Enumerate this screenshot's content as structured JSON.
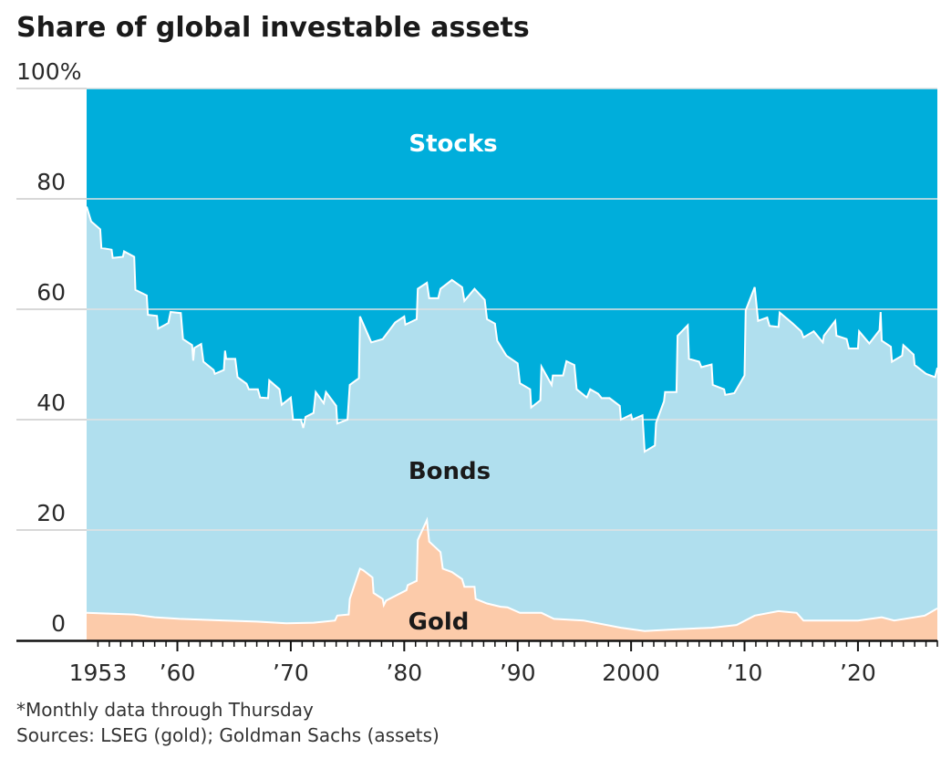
{
  "chart_data": {
    "type": "area",
    "stacked": true,
    "title": "Share of global investable assets",
    "ylim": [
      0,
      100
    ],
    "xlim": [
      1952,
      2027
    ],
    "y_ticks": [
      {
        "value": 100,
        "label": "100%"
      },
      {
        "value": 80,
        "label": "80"
      },
      {
        "value": 60,
        "label": "60"
      },
      {
        "value": 40,
        "label": "40"
      },
      {
        "value": 20,
        "label": "20"
      },
      {
        "value": 0,
        "label": "0"
      }
    ],
    "x_ticks": [
      {
        "value": 1953,
        "label": "1953"
      },
      {
        "value": 1960,
        "label": "’60"
      },
      {
        "value": 1970,
        "label": "’70"
      },
      {
        "value": 1980,
        "label": "’80"
      },
      {
        "value": 1990,
        "label": "’90"
      },
      {
        "value": 2000,
        "label": "2000"
      },
      {
        "value": 2010,
        "label": "’10"
      },
      {
        "value": 2020,
        "label": "’20"
      }
    ],
    "grid": true,
    "colors": {
      "Stocks": "#00aedb",
      "Bonds": "#b0dfee",
      "Gold": "#fccbaa",
      "stocks_label": "#ffffff",
      "other_label": "#1a1a1a"
    },
    "series": [
      {
        "name": "Stocks",
        "points": [
          [
            1952,
            21.4
          ],
          [
            1952.4,
            24.1
          ],
          [
            1953.2,
            25.5
          ],
          [
            1953.3,
            28.9
          ],
          [
            1954.2,
            29.2
          ],
          [
            1954.3,
            30.7
          ],
          [
            1955.2,
            30.5
          ],
          [
            1955.3,
            29.5
          ],
          [
            1956.2,
            30.5
          ],
          [
            1956.3,
            36.5
          ],
          [
            1957.3,
            37.5
          ],
          [
            1957.4,
            41
          ],
          [
            1958.2,
            41.2
          ],
          [
            1958.3,
            43.5
          ],
          [
            1959.2,
            42.5
          ],
          [
            1959.4,
            40.5
          ],
          [
            1960.3,
            40.7
          ],
          [
            1960.5,
            45.4
          ],
          [
            1961.3,
            46.5
          ],
          [
            1961.4,
            49.3
          ],
          [
            1961.5,
            47
          ],
          [
            1962.1,
            46.3
          ],
          [
            1962.3,
            49.5
          ],
          [
            1963.2,
            51
          ],
          [
            1963.3,
            51.7
          ],
          [
            1964.1,
            51
          ],
          [
            1964.2,
            47.5
          ],
          [
            1964.3,
            49
          ],
          [
            1965.1,
            49
          ],
          [
            1965.3,
            52.3
          ],
          [
            1966.1,
            53.5
          ],
          [
            1966.3,
            54.5
          ],
          [
            1967.1,
            54.5
          ],
          [
            1967.3,
            56
          ],
          [
            1968.0,
            56.1
          ],
          [
            1968.1,
            52.9
          ],
          [
            1969.0,
            54.5
          ],
          [
            1969.2,
            57.3
          ],
          [
            1970.0,
            56
          ],
          [
            1970.2,
            60
          ],
          [
            1970.9,
            60
          ],
          [
            1971.1,
            61.5
          ],
          [
            1971.3,
            59.5
          ],
          [
            1972.0,
            58.8
          ],
          [
            1972.2,
            55
          ],
          [
            1972.9,
            57
          ],
          [
            1973.1,
            55
          ],
          [
            1974.0,
            57.5
          ],
          [
            1974.1,
            60.7
          ],
          [
            1975.0,
            60
          ],
          [
            1975.2,
            53.7
          ],
          [
            1976.0,
            52.5
          ],
          [
            1976.1,
            41.3
          ],
          [
            1977.1,
            46
          ],
          [
            1978.1,
            45.4
          ],
          [
            1979.2,
            42.4
          ],
          [
            1980.0,
            41.3
          ],
          [
            1980.1,
            42.8
          ],
          [
            1981.1,
            41.8
          ],
          [
            1981.2,
            36.3
          ],
          [
            1982.0,
            35.2
          ],
          [
            1982.2,
            38
          ],
          [
            1983.0,
            38
          ],
          [
            1983.2,
            36.3
          ],
          [
            1984.2,
            34.7
          ],
          [
            1985.1,
            36
          ],
          [
            1985.3,
            38.5
          ],
          [
            1986.2,
            36.3
          ],
          [
            1987.1,
            38.3
          ],
          [
            1987.3,
            41.8
          ],
          [
            1988.0,
            42.6
          ],
          [
            1988.2,
            45.7
          ],
          [
            1989.0,
            48.4
          ],
          [
            1990.0,
            49.8
          ],
          [
            1990.2,
            53.4
          ],
          [
            1991.1,
            54.5
          ],
          [
            1991.2,
            57.8
          ],
          [
            1992.0,
            56.5
          ],
          [
            1992.1,
            50.4
          ],
          [
            1993.0,
            53.7
          ],
          [
            1993.1,
            52
          ],
          [
            1994.0,
            52
          ],
          [
            1994.3,
            49.4
          ],
          [
            1995.0,
            50.1
          ],
          [
            1995.2,
            54.5
          ],
          [
            1996.1,
            56
          ],
          [
            1996.4,
            54.5
          ],
          [
            1997.1,
            55.3
          ],
          [
            1997.4,
            56.1
          ],
          [
            1998.1,
            56.1
          ],
          [
            1999.0,
            57.5
          ],
          [
            1999.1,
            60
          ],
          [
            2000.0,
            59.1
          ],
          [
            2000.1,
            60
          ],
          [
            2001.0,
            59.2
          ],
          [
            2001.2,
            65.8
          ],
          [
            2002.1,
            64.7
          ],
          [
            2002.2,
            60.6
          ],
          [
            2002.9,
            56.7
          ],
          [
            2003.0,
            55
          ],
          [
            2004.0,
            55
          ],
          [
            2004.1,
            44.8
          ],
          [
            2005.0,
            42.9
          ],
          [
            2005.1,
            49
          ],
          [
            2006.0,
            49.5
          ],
          [
            2006.2,
            50.5
          ],
          [
            2007.1,
            50
          ],
          [
            2007.2,
            53.7
          ],
          [
            2008.2,
            54.5
          ],
          [
            2008.3,
            55.5
          ],
          [
            2009.1,
            55.2
          ],
          [
            2010.0,
            52
          ],
          [
            2010.1,
            40.2
          ],
          [
            2010.9,
            36
          ],
          [
            2011.2,
            42.1
          ],
          [
            2012.0,
            41.5
          ],
          [
            2012.2,
            43
          ],
          [
            2013.0,
            43.2
          ],
          [
            2013.1,
            40.6
          ],
          [
            2014.2,
            42.5
          ],
          [
            2015.0,
            44
          ],
          [
            2015.2,
            45.1
          ],
          [
            2016.1,
            44
          ],
          [
            2016.9,
            46
          ],
          [
            2017.0,
            44.8
          ],
          [
            2018.0,
            42.1
          ],
          [
            2018.1,
            44.8
          ],
          [
            2019.0,
            45.4
          ],
          [
            2019.2,
            47.1
          ],
          [
            2020.0,
            47.1
          ],
          [
            2020.1,
            44
          ],
          [
            2021.0,
            46.2
          ],
          [
            2021.9,
            43.8
          ],
          [
            2022.0,
            40.5
          ],
          [
            2022.1,
            45.7
          ],
          [
            2022.9,
            46.8
          ],
          [
            2023.0,
            49.5
          ],
          [
            2023.9,
            48.4
          ],
          [
            2024.0,
            46.5
          ],
          [
            2024.9,
            48.2
          ],
          [
            2025.0,
            50.1
          ],
          [
            2026.0,
            51.7
          ],
          [
            2026.8,
            52.3
          ],
          [
            2027.0,
            50.6
          ]
        ]
      },
      {
        "name": "Bonds"
      },
      {
        "name": "Gold",
        "points": [
          [
            1952,
            5.0
          ],
          [
            1956.2,
            4.7
          ],
          [
            1958,
            4.2
          ],
          [
            1960.2,
            3.9
          ],
          [
            1964.2,
            3.6
          ],
          [
            1967,
            3.4
          ],
          [
            1969.6,
            3.1
          ],
          [
            1972,
            3.2
          ],
          [
            1973.9,
            3.6
          ],
          [
            1974.1,
            4.5
          ],
          [
            1975.1,
            4.7
          ],
          [
            1975.2,
            7.5
          ],
          [
            1976.1,
            13
          ],
          [
            1976.4,
            12.7
          ],
          [
            1977.2,
            11.4
          ],
          [
            1977.3,
            8.6
          ],
          [
            1978.1,
            7.5
          ],
          [
            1978.2,
            6.4
          ],
          [
            1978.4,
            7.2
          ],
          [
            1980.2,
            9.1
          ],
          [
            1980.3,
            10
          ],
          [
            1981.1,
            10.8
          ],
          [
            1981.2,
            18.2
          ],
          [
            1982,
            21.8
          ],
          [
            1982.2,
            17.9
          ],
          [
            1983.2,
            16
          ],
          [
            1983.4,
            13
          ],
          [
            1984.2,
            12.4
          ],
          [
            1985.1,
            11.1
          ],
          [
            1985.3,
            9.7
          ],
          [
            1986.2,
            9.7
          ],
          [
            1986.3,
            7.5
          ],
          [
            1987.3,
            6.7
          ],
          [
            1988.5,
            6.1
          ],
          [
            1989.1,
            6.0
          ],
          [
            1990.2,
            5.0
          ],
          [
            1992.1,
            5.0
          ],
          [
            1993.2,
            3.9
          ],
          [
            1995.8,
            3.6
          ],
          [
            1999.1,
            2.3
          ],
          [
            2001.2,
            1.7
          ],
          [
            2003.9,
            2.0
          ],
          [
            2007.1,
            2.3
          ],
          [
            2009.3,
            2.8
          ],
          [
            2010.9,
            4.5
          ],
          [
            2013,
            5.3
          ],
          [
            2014.6,
            5.0
          ],
          [
            2015.2,
            3.6
          ],
          [
            2017.3,
            3.6
          ],
          [
            2020,
            3.6
          ],
          [
            2022.1,
            4.2
          ],
          [
            2023.2,
            3.6
          ],
          [
            2025.9,
            4.5
          ],
          [
            2027,
            5.8
          ]
        ]
      }
    ],
    "annotations": [
      {
        "series": "Stocks",
        "text": "Stocks"
      },
      {
        "series": "Bonds",
        "text": "Bonds"
      },
      {
        "series": "Gold",
        "text": "Gold"
      }
    ],
    "footnote": "*Monthly data through Thursday",
    "source": "Sources: LSEG (gold); Goldman Sachs (assets)"
  }
}
